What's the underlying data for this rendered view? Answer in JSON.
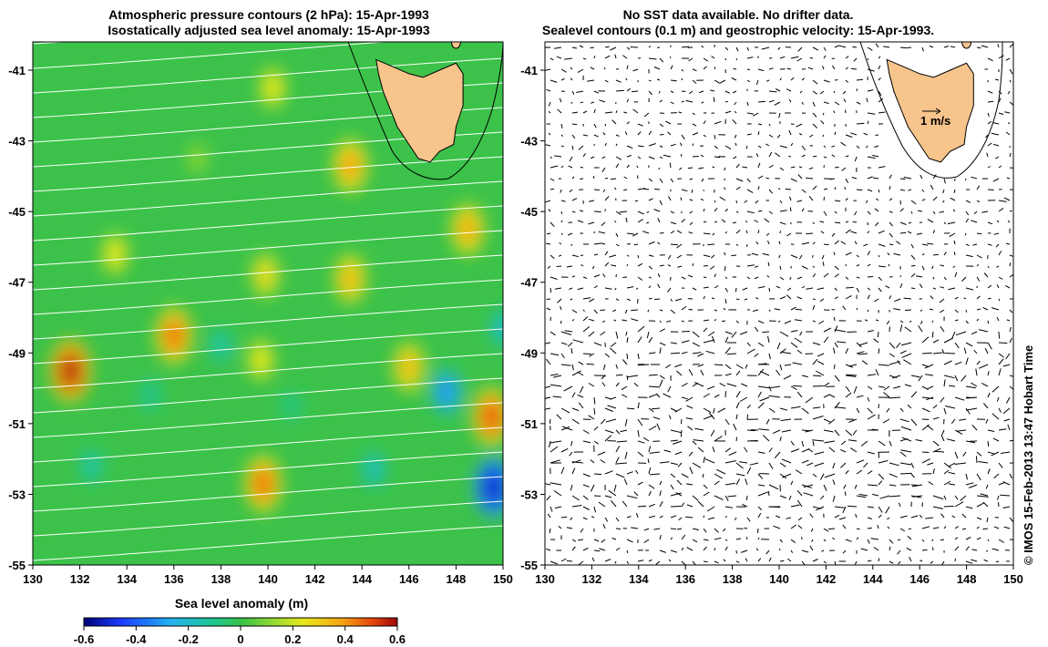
{
  "left_panel": {
    "title_line1": "Atmospheric pressure contours (2 hPa): 15-Apr-1993",
    "title_line2": "Isostatically adjusted sea level anomaly: 15-Apr-1993",
    "y_ticks": [
      "-41",
      "-43",
      "-45",
      "-47",
      "-49",
      "-51",
      "-53",
      "-55"
    ],
    "x_ticks": [
      "130",
      "132",
      "134",
      "136",
      "138",
      "140",
      "142",
      "144",
      "146",
      "148",
      "150"
    ]
  },
  "right_panel": {
    "title_line1": "No SST data available.  No drifter data.",
    "title_line2": "Sealevel contours (0.1 m) and geostrophic velocity: 15-Apr-1993.",
    "y_ticks": [
      "-41",
      "-43",
      "-45",
      "-47",
      "-49",
      "-51",
      "-53",
      "-55"
    ],
    "x_ticks": [
      "130",
      "132",
      "134",
      "136",
      "138",
      "140",
      "142",
      "144",
      "146",
      "148",
      "150"
    ],
    "scale_label": "1 m/s"
  },
  "colorbar": {
    "title": "Sea level anomaly (m)",
    "ticks": [
      "-0.6",
      "-0.4",
      "-0.2",
      "0",
      "0.2",
      "0.4",
      "0.6"
    ],
    "range": [
      -0.6,
      0.6
    ]
  },
  "credit": "© IMOS 15-Feb-2013 13:47 Hobart Time",
  "colors": {
    "land": "#f7c48c",
    "background_field": "#3cc24a",
    "pressure_contours": "#ffffff",
    "arrows": "#000000"
  },
  "anomaly_blobs": [
    {
      "lon": 140.2,
      "lat": -41.5,
      "v": 0.25
    },
    {
      "lon": 146.0,
      "lat": -41.6,
      "v": 0.1
    },
    {
      "lon": 143.5,
      "lat": -43.7,
      "v": 0.4
    },
    {
      "lon": 137.0,
      "lat": -43.5,
      "v": 0.12
    },
    {
      "lon": 133.5,
      "lat": -46.2,
      "v": 0.25
    },
    {
      "lon": 139.9,
      "lat": -46.8,
      "v": 0.28
    },
    {
      "lon": 143.5,
      "lat": -46.9,
      "v": 0.35
    },
    {
      "lon": 148.5,
      "lat": -45.5,
      "v": 0.38
    },
    {
      "lon": 136.0,
      "lat": -48.5,
      "v": 0.45
    },
    {
      "lon": 131.6,
      "lat": -49.5,
      "v": 0.55
    },
    {
      "lon": 139.7,
      "lat": -49.2,
      "v": 0.25
    },
    {
      "lon": 146.0,
      "lat": -49.4,
      "v": 0.35
    },
    {
      "lon": 149.5,
      "lat": -50.8,
      "v": 0.48
    },
    {
      "lon": 139.8,
      "lat": -52.7,
      "v": 0.45
    },
    {
      "lon": 138.0,
      "lat": -48.8,
      "v": -0.15
    },
    {
      "lon": 135.0,
      "lat": -50.2,
      "v": -0.12
    },
    {
      "lon": 141.0,
      "lat": -50.5,
      "v": -0.1
    },
    {
      "lon": 147.6,
      "lat": -50.1,
      "v": -0.3
    },
    {
      "lon": 149.6,
      "lat": -52.8,
      "v": -0.5
    },
    {
      "lon": 132.5,
      "lat": -52.2,
      "v": -0.15
    },
    {
      "lon": 144.5,
      "lat": -52.3,
      "v": -0.18
    },
    {
      "lon": 150.0,
      "lat": -48.3,
      "v": -0.2
    }
  ]
}
